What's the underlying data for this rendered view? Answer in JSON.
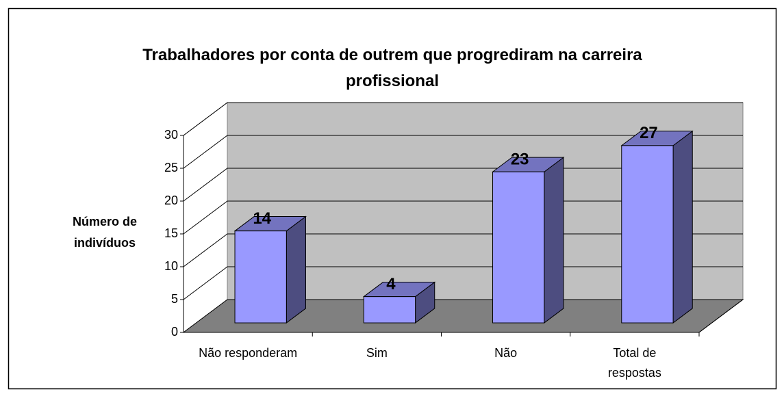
{
  "chart_data": {
    "type": "bar3d",
    "title": "Trabalhadores por conta de outrem que progrediram na carreira profissional",
    "y_label": "Número de indivíduos",
    "categories": [
      "Não responderam",
      "Sim",
      "Não",
      "Total de respostas"
    ],
    "values": [
      14,
      4,
      23,
      27
    ],
    "color": "#9999ff",
    "ylim": [
      0,
      30
    ],
    "yticks": [
      0,
      5,
      10,
      15,
      20,
      25,
      30
    ],
    "grid": true
  }
}
